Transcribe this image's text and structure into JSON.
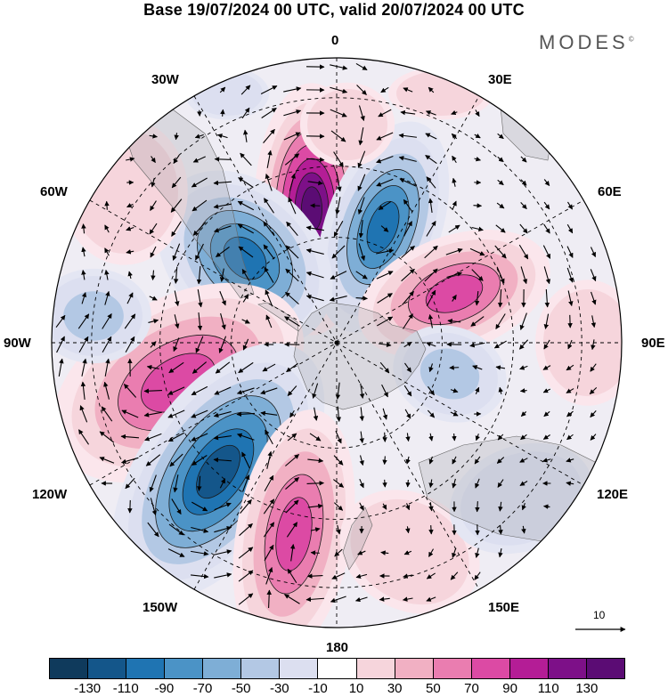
{
  "header": {
    "title": "Base 19/07/2024 00 UTC, valid 20/07/2024 00 UTC",
    "brand": "MODES",
    "brand_mark": "©"
  },
  "map": {
    "projection": "south polar stereographic",
    "longitude_labels": {
      "top": "0",
      "top_right": "30E",
      "upper_right": "60E",
      "right": "90E",
      "lower_right": "120E",
      "bottom_right": "150E",
      "bottom": "180",
      "bottom_left": "150W",
      "lower_left": "120W",
      "left": "90W",
      "upper_left": "60W",
      "top_left": "30W"
    },
    "reference_vector": {
      "label": "10",
      "icon": "arrow-right-icon"
    }
  },
  "colorbar": {
    "ticks": [
      "-130",
      "-110",
      "-90",
      "-70",
      "-50",
      "-30",
      "-10",
      "10",
      "30",
      "50",
      "70",
      "90",
      "110",
      "130"
    ],
    "colors": [
      "#0f3a5c",
      "#14568a",
      "#1f74b2",
      "#4b93c6",
      "#7eaed6",
      "#b3c8e4",
      "#dcdff0",
      "#ffffff",
      "#f6d5dc",
      "#f1b0c3",
      "#ea7db0",
      "#dc4aa4",
      "#b41d96",
      "#7d1088",
      "#5b0c74"
    ]
  }
}
